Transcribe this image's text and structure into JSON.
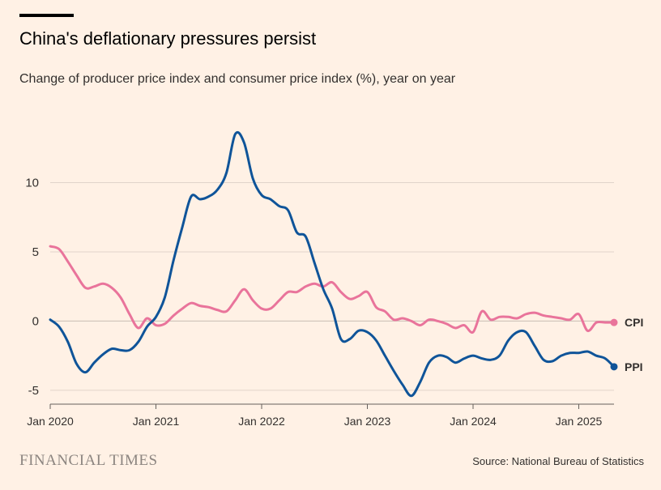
{
  "header": {
    "title": "China's deflationary pressures persist",
    "subtitle": "Change of producer price index and consumer price index (%), year on year"
  },
  "footer": {
    "brand": "FINANCIAL TIMES",
    "source": "Source: National Bureau of Statistics"
  },
  "chart_data": {
    "type": "line",
    "title": "China's deflationary pressures persist",
    "subtitle": "Change of producer price index and consumer price index (%), year on year",
    "xlabel": "",
    "ylabel": "",
    "x_unit": "month index (0 = Jan 2020)",
    "xlim": [
      0,
      64
    ],
    "ylim": [
      -6,
      15
    ],
    "y_ticks": [
      10,
      5,
      0,
      -5
    ],
    "x_ticks": [
      {
        "label": "Jan 2020",
        "at": 0
      },
      {
        "label": "Jan 2021",
        "at": 12
      },
      {
        "label": "Jan 2022",
        "at": 24
      },
      {
        "label": "Jan 2023",
        "at": 36
      },
      {
        "label": "Jan 2024",
        "at": 48
      },
      {
        "label": "Jan 2025",
        "at": 60
      }
    ],
    "grid": true,
    "series": [
      {
        "name": "CPI",
        "color": "#e9749b",
        "values": [
          5.4,
          5.2,
          4.3,
          3.3,
          2.4,
          2.5,
          2.7,
          2.4,
          1.7,
          0.5,
          -0.5,
          0.2,
          -0.3,
          -0.2,
          0.4,
          0.9,
          1.3,
          1.1,
          1.0,
          0.8,
          0.7,
          1.5,
          2.3,
          1.5,
          0.9,
          0.9,
          1.5,
          2.1,
          2.1,
          2.5,
          2.7,
          2.5,
          2.8,
          2.1,
          1.6,
          1.8,
          2.1,
          1.0,
          0.7,
          0.1,
          0.2,
          0.0,
          -0.3,
          0.1,
          0.0,
          -0.2,
          -0.5,
          -0.3,
          -0.8,
          0.7,
          0.1,
          0.3,
          0.3,
          0.2,
          0.5,
          0.6,
          0.4,
          0.3,
          0.2,
          0.1,
          0.5,
          -0.7,
          -0.1,
          -0.1,
          -0.1
        ]
      },
      {
        "name": "PPI",
        "color": "#0f5499",
        "values": [
          0.1,
          -0.4,
          -1.5,
          -3.1,
          -3.7,
          -3.0,
          -2.4,
          -2.0,
          -2.1,
          -2.1,
          -1.5,
          -0.4,
          0.3,
          1.7,
          4.4,
          6.8,
          9.0,
          8.8,
          9.0,
          9.5,
          10.7,
          13.5,
          12.9,
          10.3,
          9.1,
          8.8,
          8.3,
          8.0,
          6.4,
          6.1,
          4.2,
          2.3,
          0.9,
          -1.3,
          -1.3,
          -0.7,
          -0.8,
          -1.4,
          -2.5,
          -3.6,
          -4.6,
          -5.4,
          -4.4,
          -3.0,
          -2.5,
          -2.6,
          -3.0,
          -2.7,
          -2.5,
          -2.7,
          -2.8,
          -2.5,
          -1.4,
          -0.8,
          -0.8,
          -1.8,
          -2.8,
          -2.9,
          -2.5,
          -2.3,
          -2.3,
          -2.2,
          -2.5,
          -2.7,
          -3.3
        ]
      }
    ]
  }
}
